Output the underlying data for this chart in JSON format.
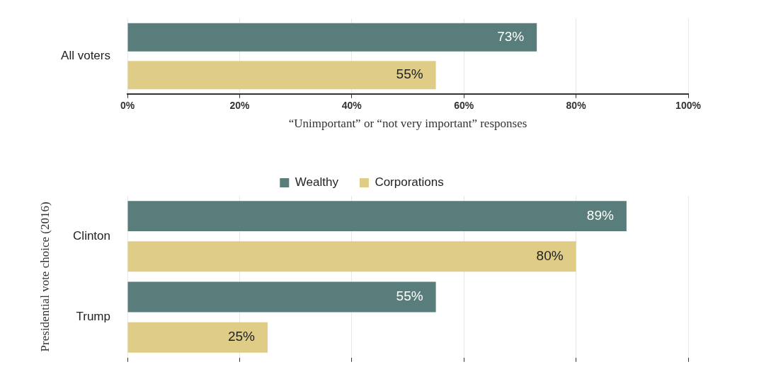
{
  "chart_data": [
    {
      "type": "bar",
      "orientation": "horizontal",
      "categories": [
        "All voters"
      ],
      "series": [
        {
          "color": "#587d7a",
          "values": [
            73
          ],
          "value_labels": [
            "73%"
          ]
        },
        {
          "color": "#decc87",
          "values": [
            55
          ],
          "value_labels": [
            "55%"
          ]
        }
      ],
      "xlim": [
        0,
        100
      ],
      "xticks": [
        {
          "value": 0,
          "label": "0%"
        },
        {
          "value": 20,
          "label": "20%"
        },
        {
          "value": 40,
          "label": "40%"
        },
        {
          "value": 60,
          "label": "60%"
        },
        {
          "value": 80,
          "label": "80%"
        },
        {
          "value": 100,
          "label": "100%"
        }
      ],
      "xlabel": "“Unimportant” or “not very important” responses",
      "grid": "x",
      "legend": false
    },
    {
      "type": "bar",
      "orientation": "horizontal",
      "categories": [
        "Clinton",
        "Trump"
      ],
      "series": [
        {
          "name": "Wealthy",
          "color": "#587d7a",
          "values": [
            89,
            55
          ],
          "value_labels": [
            "89%",
            "55%"
          ]
        },
        {
          "name": "Corporations",
          "color": "#decc87",
          "values": [
            80,
            25
          ],
          "value_labels": [
            "80%",
            "25%"
          ]
        }
      ],
      "xlim": [
        0,
        100
      ],
      "xticks": [
        0,
        20,
        40,
        60,
        80,
        100
      ],
      "tick_labels": "y",
      "ylabel": "Presidential vote choice (2016)",
      "grid": "x",
      "legend": "top"
    }
  ]
}
